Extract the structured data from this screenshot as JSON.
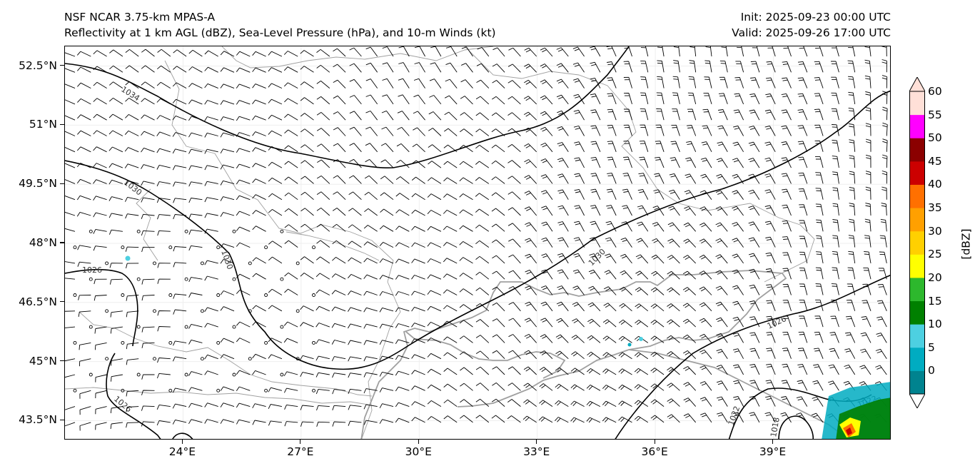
{
  "header": {
    "title_line1": "NSF NCAR 3.75-km MPAS-A",
    "title_line2": "Reflectivity at 1 km AGL (dBZ), Sea-Level Pressure (hPa), and 10-m Winds (kt)",
    "init": "Init: 2025-09-23 00:00 UTC",
    "valid": "Valid: 2025-09-26 17:00 UTC"
  },
  "map": {
    "lon_range": [
      21,
      42
    ],
    "lat_range": [
      43.0,
      53.0
    ],
    "lat_ticks": [
      "52.5°N",
      "51°N",
      "49.5°N",
      "48°N",
      "46.5°N",
      "45°N",
      "43.5°N"
    ],
    "lat_values": [
      52.5,
      51,
      49.5,
      48,
      46.5,
      45,
      43.5
    ],
    "lon_ticks": [
      "24°E",
      "27°E",
      "30°E",
      "33°E",
      "36°E",
      "39°E"
    ],
    "lon_values": [
      24,
      27,
      30,
      33,
      36,
      39
    ],
    "isobar_labels": [
      "1034",
      "1030",
      "1030",
      "1026",
      "1030",
      "1026",
      "1026",
      "1022",
      "1018",
      "1022"
    ]
  },
  "colorbar": {
    "unit": "[dBZ]",
    "levels": [
      "0",
      "5",
      "10",
      "15",
      "20",
      "25",
      "30",
      "35",
      "40",
      "45",
      "50",
      "55",
      "60"
    ],
    "colors": [
      "#00838f",
      "#00acc1",
      "#4dd0e1",
      "#008000",
      "#2db82d",
      "#ffff00",
      "#ffd000",
      "#ffa000",
      "#ff7000",
      "#cc0000",
      "#8b0000",
      "#ff00ff",
      "#ffe0d8"
    ]
  }
}
